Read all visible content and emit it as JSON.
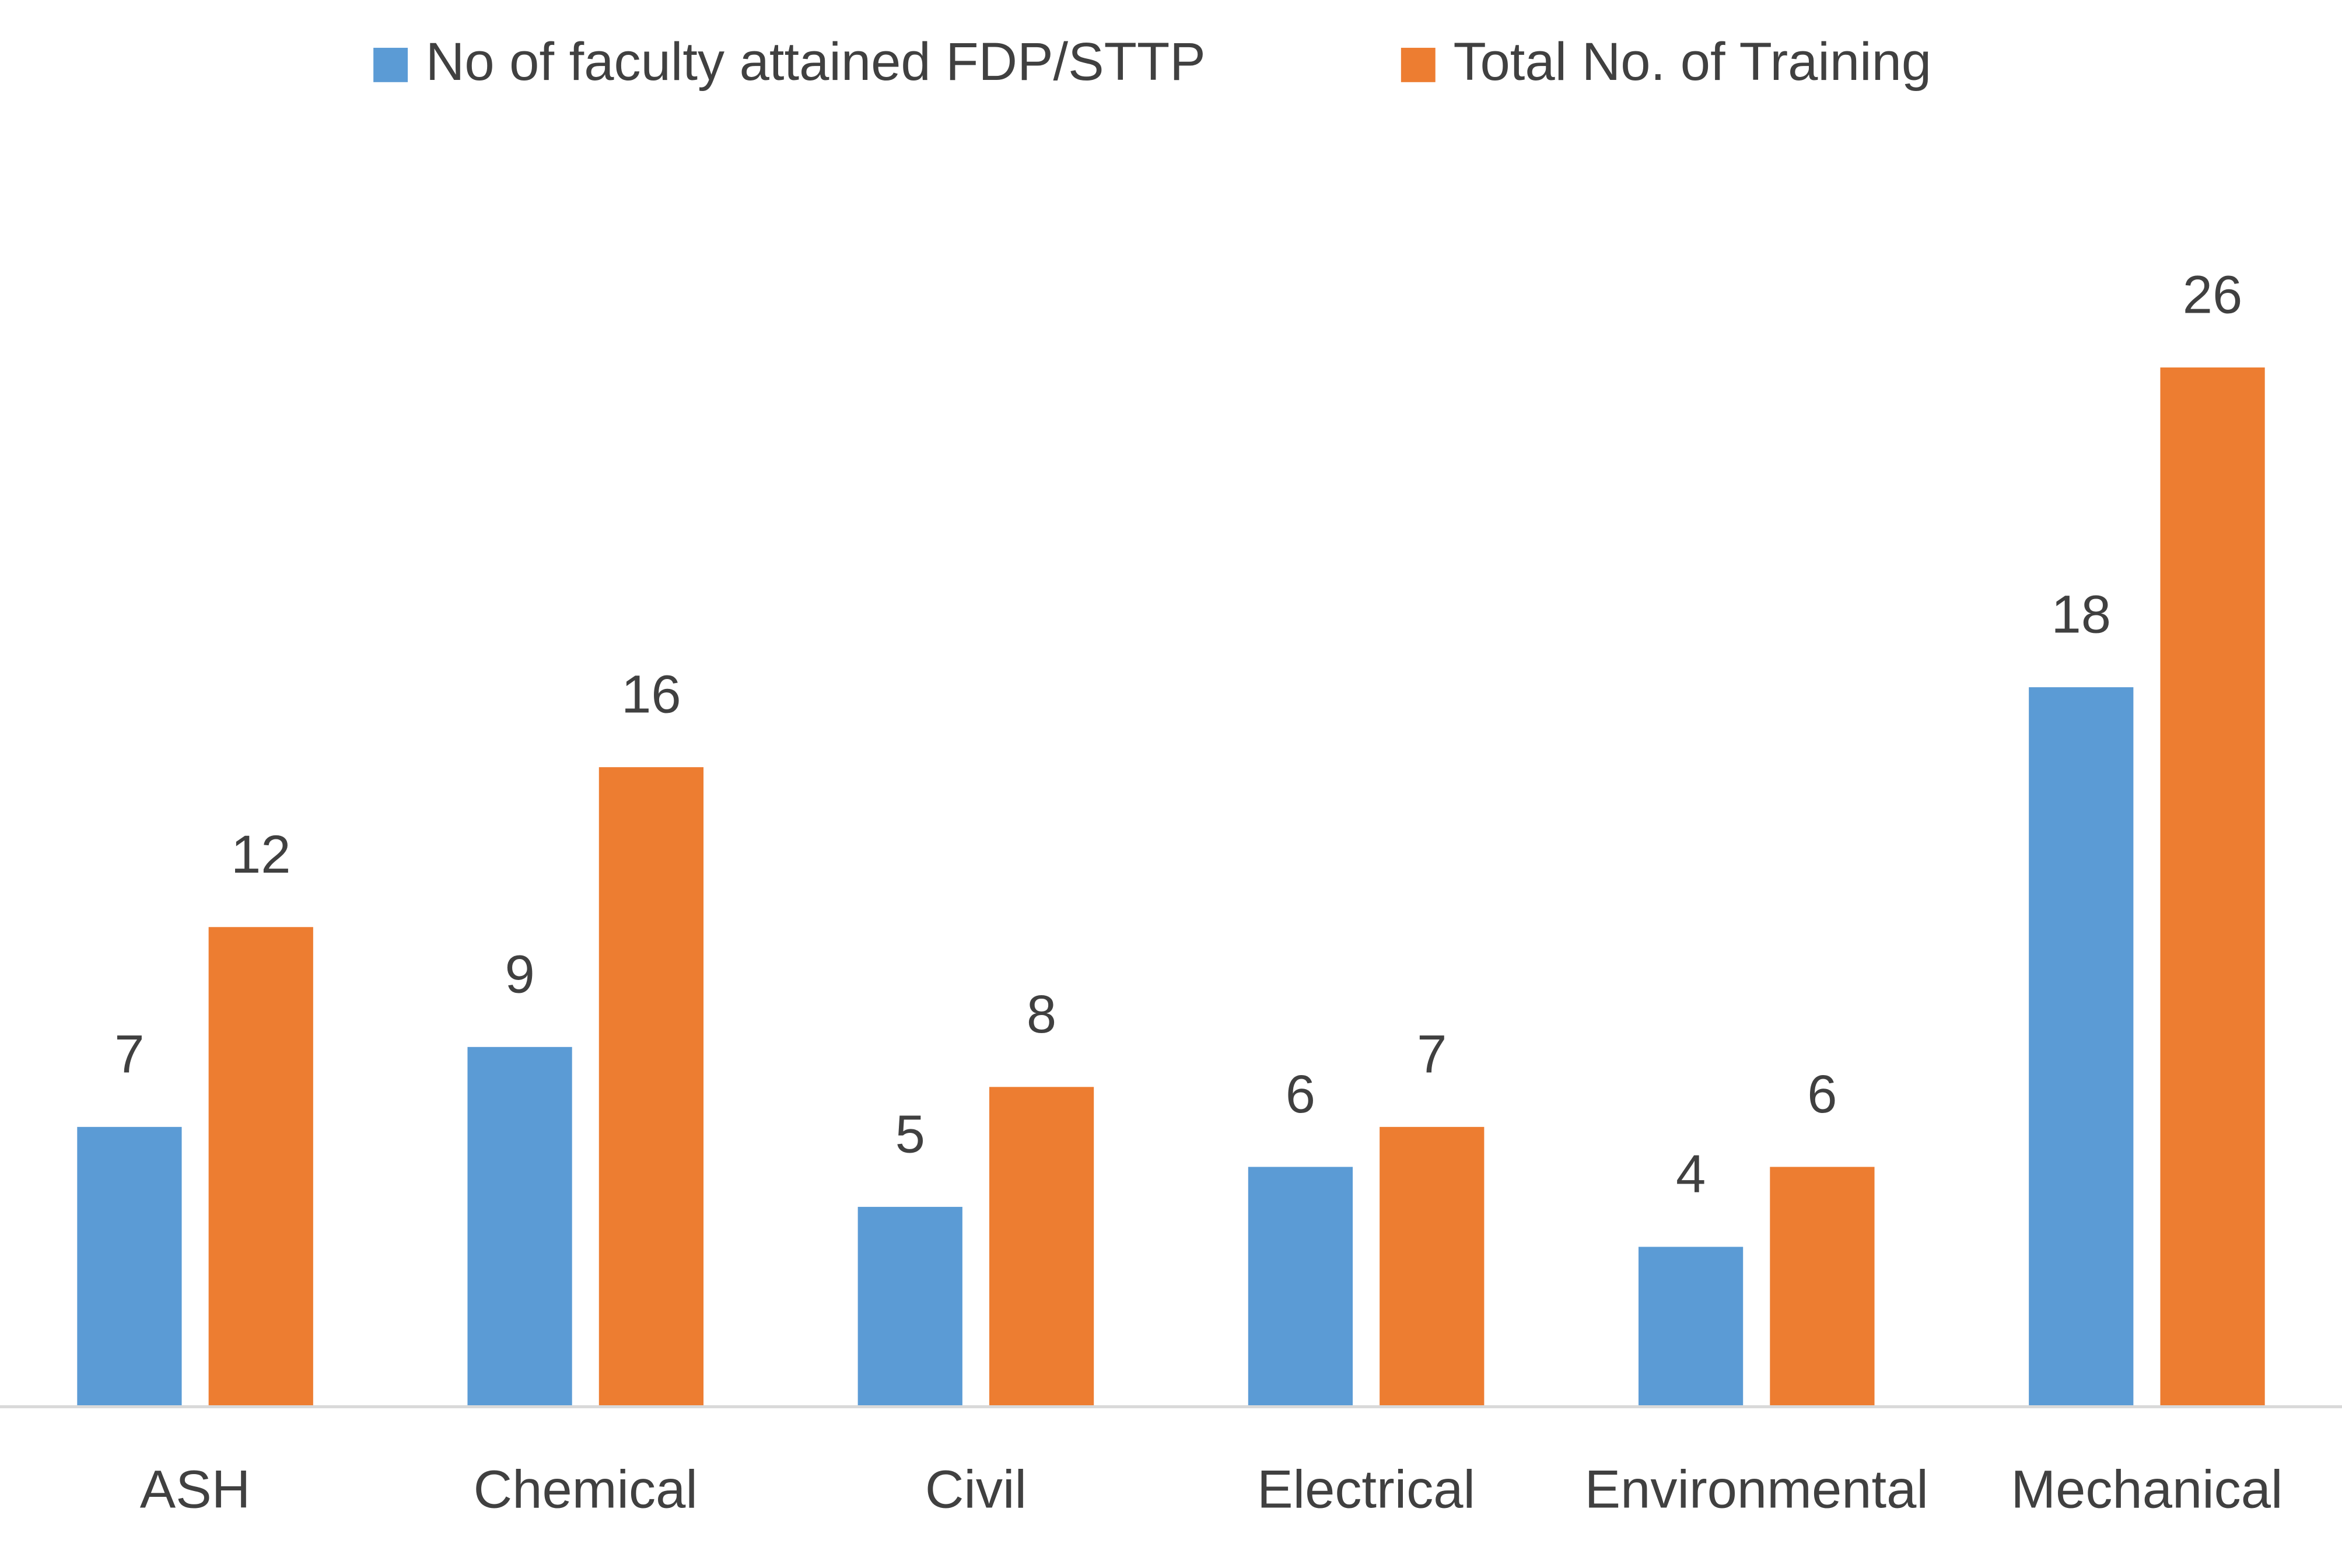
{
  "chart_data": {
    "type": "bar",
    "categories": [
      "ASH",
      "Chemical",
      "Civil",
      "Electrical",
      "Environmental",
      "Mechanical"
    ],
    "series": [
      {
        "name": "No of faculty attained FDP/STTP",
        "color": "#5b9bd5",
        "values": [
          7,
          9,
          5,
          6,
          4,
          18
        ]
      },
      {
        "name": "Total No. of Training",
        "color": "#ed7d31",
        "values": [
          12,
          16,
          8,
          7,
          6,
          26
        ]
      }
    ],
    "ylim": [
      0,
      30
    ],
    "legend": "top",
    "grid": false
  }
}
